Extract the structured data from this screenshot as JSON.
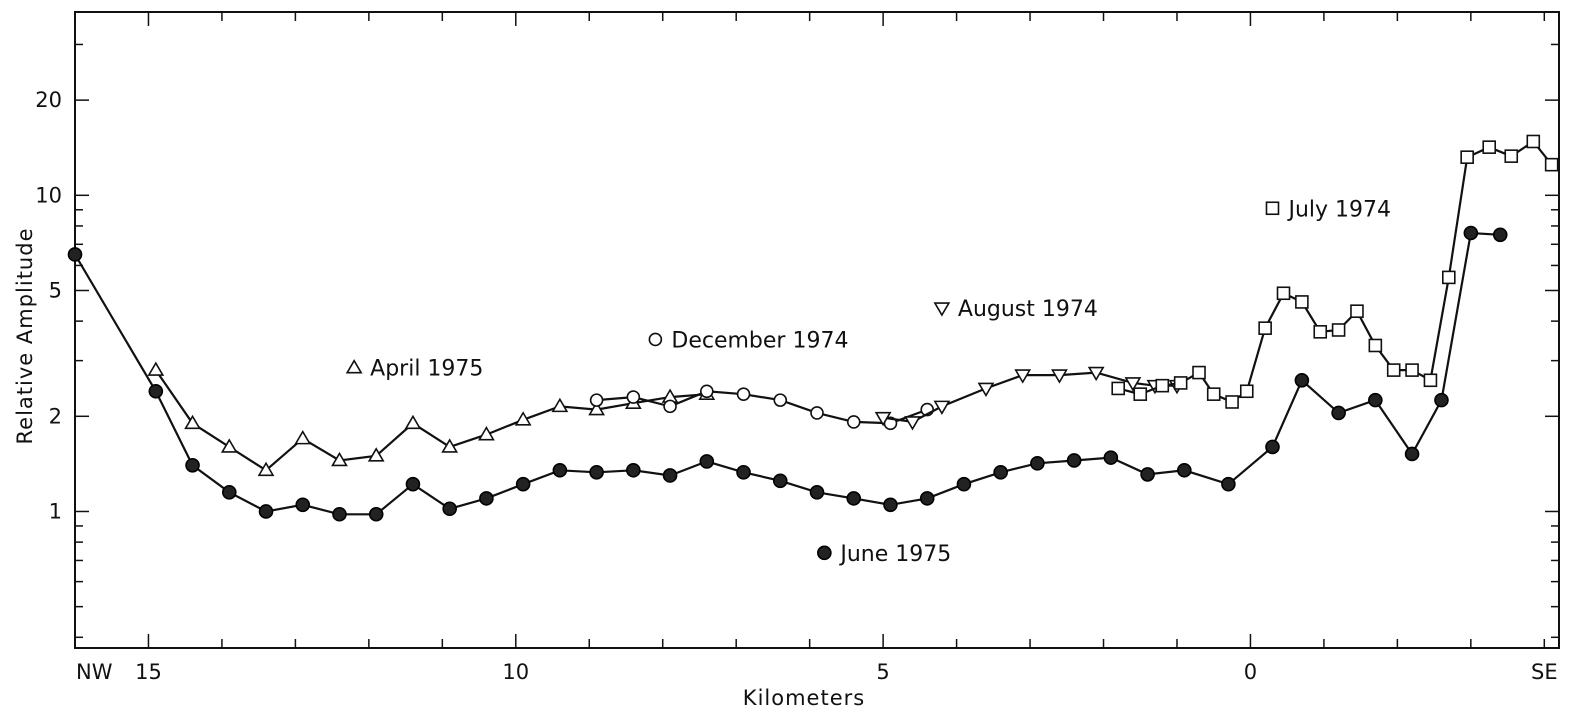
{
  "chart_data": {
    "type": "line",
    "xlabel": "Kilometers",
    "ylabel": "Relative Amplitude",
    "x_direction": "decreasing (NW 15 at left to 0 and SE at right)",
    "xlim": [
      16,
      -4.2
    ],
    "ylim": [
      0.37,
      38
    ],
    "y_scale": "log",
    "grid": false,
    "x_end_labels": {
      "left": "NW",
      "right": "SE"
    },
    "x_ticks": [
      15,
      10,
      5,
      0
    ],
    "x_tick_labels": [
      "15",
      "10",
      "5",
      "0"
    ],
    "y_ticks": [
      1,
      2,
      5,
      10,
      20
    ],
    "y_tick_labels": [
      "1",
      "2",
      "5",
      "10",
      "20"
    ],
    "series": [
      {
        "name": "June 1975",
        "marker": "filled-circle",
        "x": [
          16,
          14.9,
          14.4,
          13.9,
          13.4,
          12.9,
          12.4,
          11.9,
          11.4,
          10.9,
          10.4,
          9.9,
          9.4,
          8.9,
          8.4,
          7.9,
          7.4,
          6.9,
          6.4,
          5.9,
          5.4,
          4.9,
          4.4,
          3.9,
          3.4,
          2.9,
          2.4,
          1.9,
          1.4,
          0.9,
          0.3,
          -0.3,
          -0.7,
          -1.2,
          -1.7,
          -2.2,
          -2.6,
          -3.0,
          -3.4
        ],
        "y": [
          6.5,
          2.4,
          1.4,
          1.15,
          1.0,
          1.05,
          0.98,
          0.98,
          1.22,
          1.02,
          1.1,
          1.22,
          1.35,
          1.33,
          1.35,
          1.3,
          1.44,
          1.33,
          1.25,
          1.15,
          1.1,
          1.05,
          1.1,
          1.22,
          1.33,
          1.42,
          1.45,
          1.48,
          1.31,
          1.35,
          1.22,
          1.6,
          2.6,
          2.05,
          2.25,
          1.52,
          2.25,
          7.6,
          7.5
        ]
      },
      {
        "name": "April 1975",
        "marker": "open-triangle",
        "x": [
          14.9,
          14.4,
          13.9,
          13.4,
          12.9,
          12.4,
          11.9,
          11.4,
          10.9,
          10.4,
          9.9,
          9.4,
          8.9,
          8.4,
          7.9,
          7.4
        ],
        "y": [
          2.8,
          1.9,
          1.6,
          1.35,
          1.7,
          1.45,
          1.5,
          1.9,
          1.6,
          1.75,
          1.95,
          2.15,
          2.1,
          2.2,
          2.3,
          2.35
        ]
      },
      {
        "name": "December 1974",
        "marker": "open-circle",
        "x": [
          8.9,
          8.4,
          7.9,
          7.4,
          6.9,
          6.4,
          5.9,
          5.4,
          4.9,
          4.4
        ],
        "y": [
          2.25,
          2.3,
          2.15,
          2.4,
          2.35,
          2.25,
          2.05,
          1.92,
          1.9,
          2.1
        ]
      },
      {
        "name": "August 1974",
        "marker": "open-inverted-triangle",
        "x": [
          5.0,
          4.6,
          4.2,
          3.6,
          3.1,
          2.6,
          2.1,
          1.6,
          1.3,
          1.0
        ],
        "y": [
          1.98,
          1.92,
          2.15,
          2.45,
          2.7,
          2.7,
          2.75,
          2.55,
          2.5,
          2.5
        ]
      },
      {
        "name": "July 1974",
        "marker": "open-square",
        "x": [
          1.8,
          1.5,
          1.2,
          0.95,
          0.7,
          0.5,
          0.25,
          0.05,
          -0.2,
          -0.45,
          -0.7,
          -0.95,
          -1.2,
          -1.45,
          -1.7,
          -1.95,
          -2.2,
          -2.45,
          -2.7,
          -2.95,
          -3.25,
          -3.55,
          -3.85,
          -4.1
        ],
        "y": [
          2.45,
          2.35,
          2.5,
          2.55,
          2.75,
          2.35,
          2.22,
          2.4,
          3.8,
          4.9,
          4.6,
          3.7,
          3.75,
          4.3,
          3.35,
          2.8,
          2.8,
          2.6,
          5.5,
          13.2,
          14.2,
          13.3,
          14.8,
          12.5
        ]
      }
    ],
    "annotations": [
      {
        "text": "April 1975",
        "marker": "open-triangle",
        "x": 12.2,
        "y": 2.85
      },
      {
        "text": "December 1974",
        "marker": "open-circle",
        "x": 8.1,
        "y": 3.5
      },
      {
        "text": "August 1974",
        "marker": "open-inverted-triangle",
        "x": 4.2,
        "y": 4.4
      },
      {
        "text": "July 1974",
        "marker": "open-square",
        "x": -0.3,
        "y": 9.1
      },
      {
        "text": "June 1975",
        "marker": "filled-circle",
        "x": 5.8,
        "y": 0.74
      }
    ]
  }
}
